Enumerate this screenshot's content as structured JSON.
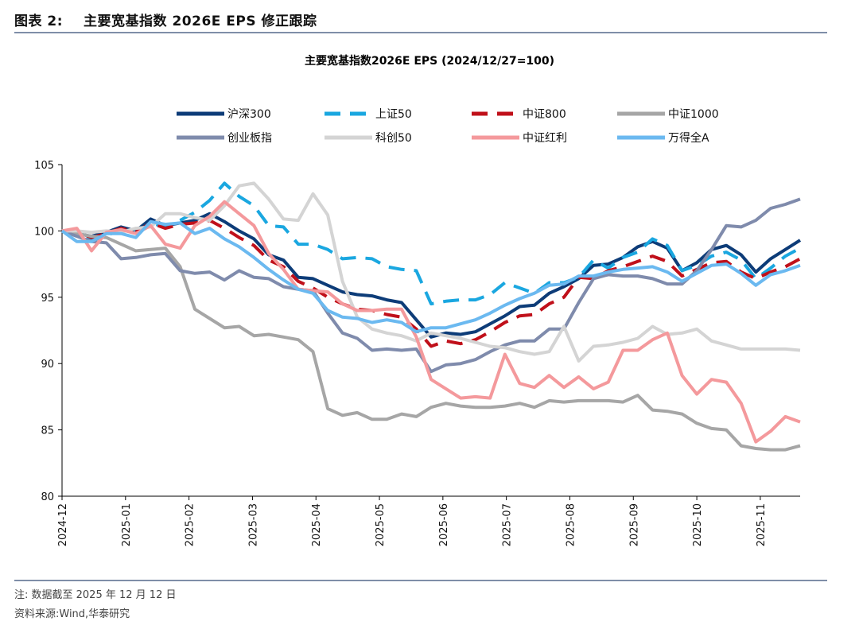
{
  "figure": {
    "number": "图表 2:",
    "title": "主要宽基指数 2026E EPS 修正跟踪"
  },
  "notes": {
    "line1": "注:  数据截至 2025 年 12 月 12 日",
    "line2": "资料来源:Wind,华泰研究"
  },
  "chart_data": {
    "type": "line",
    "title": "主要宽基指数2026E EPS  (2024/12/27=100)",
    "xlabel": "",
    "ylabel": "",
    "ylim": [
      80,
      105
    ],
    "yticks": [
      80,
      85,
      90,
      95,
      100,
      105
    ],
    "xlim": [
      0,
      50
    ],
    "xticks": [
      {
        "label": "2024-12",
        "x": 0
      },
      {
        "label": "2025-01",
        "x": 4.3
      },
      {
        "label": "2025-02",
        "x": 8.6
      },
      {
        "label": "2025-03",
        "x": 12.9
      },
      {
        "label": "2025-04",
        "x": 17.2
      },
      {
        "label": "2025-05",
        "x": 21.5
      },
      {
        "label": "2025-06",
        "x": 25.8
      },
      {
        "label": "2025-07",
        "x": 30.1
      },
      {
        "label": "2025-08",
        "x": 34.4
      },
      {
        "label": "2025-09",
        "x": 38.7
      },
      {
        "label": "2025-10",
        "x": 43.0
      },
      {
        "label": "2025-11",
        "x": 47.3
      }
    ],
    "grid": false,
    "legend_position": "top",
    "series": [
      {
        "name": "沪深300",
        "color": "#0d3c78",
        "dash": "solid",
        "x": [
          0,
          1,
          2,
          3,
          4,
          5,
          6,
          7,
          8,
          9,
          10,
          11,
          12,
          13,
          14,
          15,
          16,
          17,
          18,
          19,
          20,
          21,
          22,
          23,
          24,
          25,
          26,
          27,
          28,
          29,
          30,
          31,
          32,
          33,
          34,
          35,
          36,
          37,
          38,
          39,
          40,
          41,
          42,
          43,
          44,
          45,
          46,
          47,
          48,
          49,
          50
        ],
        "values": [
          100,
          99.8,
          99.6,
          99.9,
          100.3,
          100.0,
          100.9,
          100.4,
          100.6,
          100.8,
          101.3,
          100.7,
          100.0,
          99.4,
          98.2,
          97.8,
          96.5,
          96.4,
          95.9,
          95.4,
          95.2,
          95.1,
          94.8,
          94.6,
          93.3,
          92.0,
          92.3,
          92.2,
          92.4,
          93.0,
          93.6,
          94.3,
          94.4,
          95.3,
          95.8,
          96.4,
          97.4,
          97.5,
          98.0,
          98.8,
          99.2,
          98.7,
          97.0,
          97.6,
          98.6,
          98.9,
          98.2,
          96.9,
          97.9,
          98.6,
          99.3
        ]
      },
      {
        "name": "上证50",
        "color": "#1aa7e0",
        "dash": "longdash",
        "x": [
          0,
          1,
          2,
          3,
          4,
          5,
          6,
          7,
          8,
          9,
          10,
          11,
          12,
          13,
          14,
          15,
          16,
          17,
          18,
          19,
          20,
          21,
          22,
          23,
          24,
          25,
          26,
          27,
          28,
          29,
          30,
          31,
          32,
          33,
          34,
          35,
          36,
          37,
          38,
          39,
          40,
          41,
          42,
          43,
          44,
          45,
          46,
          47,
          48,
          49,
          50
        ],
        "values": [
          100,
          99.8,
          99.3,
          99.6,
          100.2,
          99.9,
          100.6,
          100.3,
          100.8,
          101.4,
          102.3,
          103.6,
          102.6,
          101.9,
          100.4,
          100.3,
          99.0,
          99.0,
          98.6,
          97.9,
          98.0,
          97.9,
          97.3,
          97.1,
          97.0,
          94.5,
          94.7,
          94.8,
          94.8,
          95.2,
          96.1,
          95.7,
          95.3,
          96.1,
          96.1,
          96.5,
          97.8,
          97.2,
          98.0,
          98.4,
          99.4,
          98.9,
          97.0,
          97.4,
          98.1,
          98.4,
          97.8,
          96.4,
          97.2,
          98.1,
          98.7
        ]
      },
      {
        "name": "中证800",
        "color": "#c0101a",
        "dash": "longdash",
        "x": [
          0,
          1,
          2,
          3,
          4,
          5,
          6,
          7,
          8,
          9,
          10,
          11,
          12,
          13,
          14,
          15,
          16,
          17,
          18,
          19,
          20,
          21,
          22,
          23,
          24,
          25,
          26,
          27,
          28,
          29,
          30,
          31,
          32,
          33,
          34,
          35,
          36,
          37,
          38,
          39,
          40,
          41,
          42,
          43,
          44,
          45,
          46,
          47,
          48,
          49,
          50
        ],
        "values": [
          100,
          99.9,
          99.5,
          99.8,
          100.2,
          99.9,
          100.6,
          100.2,
          100.5,
          100.6,
          100.8,
          100.2,
          99.5,
          98.9,
          97.8,
          97.3,
          96.2,
          95.7,
          95.0,
          94.5,
          94.1,
          94.0,
          93.7,
          93.5,
          92.6,
          91.3,
          91.7,
          91.5,
          91.8,
          92.4,
          93.1,
          93.6,
          93.7,
          94.5,
          95.0,
          96.5,
          96.4,
          97.0,
          97.3,
          97.7,
          98.1,
          97.7,
          96.6,
          97.1,
          97.6,
          97.7,
          96.9,
          96.4,
          96.9,
          97.3,
          97.9
        ]
      },
      {
        "name": "中证1000",
        "color": "#a6a6a6",
        "dash": "solid",
        "x": [
          0,
          1,
          2,
          3,
          4,
          5,
          6,
          7,
          8,
          9,
          10,
          11,
          12,
          13,
          14,
          15,
          16,
          17,
          18,
          19,
          20,
          21,
          22,
          23,
          24,
          25,
          26,
          27,
          28,
          29,
          30,
          31,
          32,
          33,
          34,
          35,
          36,
          37,
          38,
          39,
          40,
          41,
          42,
          43,
          44,
          45,
          46,
          47,
          48,
          49,
          50
        ],
        "values": [
          100,
          99.8,
          99.6,
          99.5,
          99.0,
          98.5,
          98.6,
          98.7,
          97.3,
          94.1,
          93.4,
          92.7,
          92.8,
          92.1,
          92.2,
          92.0,
          91.8,
          90.9,
          86.6,
          86.1,
          86.3,
          85.8,
          85.8,
          86.2,
          86.0,
          86.7,
          87.0,
          86.8,
          86.7,
          86.7,
          86.8,
          87.0,
          86.7,
          87.2,
          87.1,
          87.2,
          87.2,
          87.2,
          87.1,
          87.6,
          86.5,
          86.4,
          86.2,
          85.5,
          85.1,
          85.0,
          83.8,
          83.6,
          83.5,
          83.5,
          83.8
        ]
      },
      {
        "name": "创业板指",
        "color": "#7f8bac",
        "dash": "solid",
        "x": [
          0,
          1,
          2,
          3,
          4,
          5,
          6,
          7,
          8,
          9,
          10,
          11,
          12,
          13,
          14,
          15,
          16,
          17,
          18,
          19,
          20,
          21,
          22,
          23,
          24,
          25,
          26,
          27,
          28,
          29,
          30,
          31,
          32,
          33,
          34,
          35,
          36,
          37,
          38,
          39,
          40,
          41,
          42,
          43,
          44,
          45,
          46,
          47,
          48,
          49,
          50
        ],
        "values": [
          100,
          99.6,
          99.2,
          99.1,
          97.9,
          98.0,
          98.2,
          98.3,
          97.0,
          96.8,
          96.9,
          96.3,
          97.0,
          96.5,
          96.4,
          95.8,
          95.6,
          95.5,
          93.8,
          92.3,
          91.9,
          91.0,
          91.1,
          91.0,
          91.1,
          89.4,
          89.9,
          90.0,
          90.3,
          90.9,
          91.4,
          91.7,
          91.7,
          92.6,
          92.6,
          94.6,
          96.4,
          96.7,
          96.6,
          96.6,
          96.4,
          96.0,
          96.0,
          97.0,
          98.6,
          100.4,
          100.3,
          100.8,
          101.7,
          102.0,
          102.4
        ]
      },
      {
        "name": "科创50",
        "color": "#d4d4d4",
        "dash": "solid",
        "x": [
          0,
          1,
          2,
          3,
          4,
          5,
          6,
          7,
          8,
          9,
          10,
          11,
          12,
          13,
          14,
          15,
          16,
          17,
          18,
          19,
          20,
          21,
          22,
          23,
          24,
          25,
          26,
          27,
          28,
          29,
          30,
          31,
          32,
          33,
          34,
          35,
          36,
          37,
          38,
          39,
          40,
          41,
          42,
          43,
          44,
          45,
          46,
          47,
          48,
          49,
          50
        ],
        "values": [
          100,
          100.0,
          99.9,
          100.0,
          99.9,
          100.2,
          100.3,
          101.3,
          101.3,
          101.0,
          100.8,
          101.9,
          103.4,
          103.6,
          102.4,
          100.9,
          100.8,
          102.8,
          101.2,
          96.2,
          93.5,
          92.6,
          92.3,
          92.1,
          91.7,
          92.3,
          92.1,
          91.9,
          91.6,
          91.3,
          91.2,
          90.9,
          90.7,
          90.9,
          92.8,
          90.2,
          91.3,
          91.4,
          91.6,
          91.9,
          92.8,
          92.2,
          92.3,
          92.6,
          91.7,
          91.4,
          91.1,
          91.1,
          91.1,
          91.1,
          91.0
        ]
      },
      {
        "name": "中证红利",
        "color": "#f4999c",
        "dash": "solid",
        "x": [
          0,
          1,
          2,
          3,
          4,
          5,
          6,
          7,
          8,
          9,
          10,
          11,
          12,
          13,
          14,
          15,
          16,
          17,
          18,
          19,
          20,
          21,
          22,
          23,
          24,
          25,
          26,
          27,
          28,
          29,
          30,
          31,
          32,
          33,
          34,
          35,
          36,
          37,
          38,
          39,
          40,
          41,
          42,
          43,
          44,
          45,
          46,
          47,
          48,
          49,
          50
        ],
        "values": [
          100,
          100.2,
          98.5,
          99.9,
          100.1,
          99.8,
          100.4,
          99.0,
          98.7,
          100.4,
          101.1,
          102.2,
          101.3,
          100.4,
          98.3,
          97.1,
          95.6,
          95.5,
          95.4,
          94.5,
          94.0,
          94.0,
          94.1,
          94.1,
          92.0,
          88.8,
          88.1,
          87.4,
          87.5,
          87.4,
          90.7,
          88.5,
          88.2,
          89.1,
          88.2,
          89.0,
          88.1,
          88.6,
          91.0,
          91.0,
          91.8,
          92.3,
          89.1,
          87.7,
          88.8,
          88.6,
          87.0,
          84.1,
          84.9,
          86.0,
          85.6
        ]
      },
      {
        "name": "万得全A",
        "color": "#6bb9f0",
        "dash": "solid",
        "x": [
          0,
          1,
          2,
          3,
          4,
          5,
          6,
          7,
          8,
          9,
          10,
          11,
          12,
          13,
          14,
          15,
          16,
          17,
          18,
          19,
          20,
          21,
          22,
          23,
          24,
          25,
          26,
          27,
          28,
          29,
          30,
          31,
          32,
          33,
          34,
          35,
          36,
          37,
          38,
          39,
          40,
          41,
          42,
          43,
          44,
          45,
          46,
          47,
          48,
          49,
          50
        ],
        "values": [
          100,
          99.2,
          99.2,
          99.8,
          99.8,
          99.5,
          100.7,
          100.5,
          100.6,
          99.8,
          100.2,
          99.4,
          98.8,
          98.0,
          97.1,
          96.3,
          95.6,
          95.3,
          94.0,
          93.5,
          93.4,
          93.1,
          93.3,
          93.1,
          92.4,
          92.7,
          92.7,
          93.0,
          93.3,
          93.8,
          94.4,
          94.9,
          95.3,
          95.9,
          96.0,
          96.6,
          96.6,
          96.9,
          97.1,
          97.2,
          97.3,
          96.9,
          96.2,
          96.8,
          97.4,
          97.5,
          96.8,
          95.9,
          96.7,
          97.0,
          97.4
        ]
      }
    ]
  }
}
